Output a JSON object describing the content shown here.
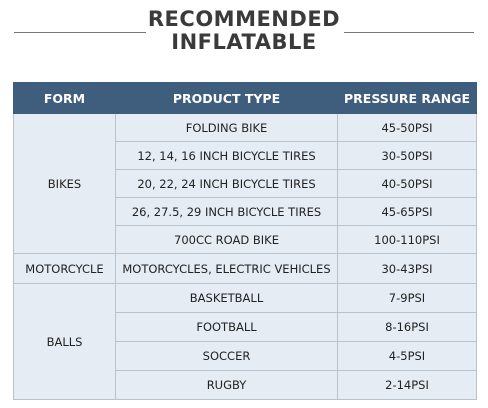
{
  "header": {
    "title": [
      "RECOMMENDED",
      "INFLATABLE"
    ]
  },
  "table": {
    "columns": [
      "FORM",
      "PRODUCT TYPE",
      "PRESSURE RANGE"
    ],
    "groups": [
      {
        "form": "BIKES",
        "rows": [
          [
            "FOLDING BIKE",
            "45-50PSI"
          ],
          [
            "12, 14, 16 INCH BICYCLE TIRES",
            "30-50PSI"
          ],
          [
            "20, 22, 24 INCH BICYCLE TIRES",
            "40-50PSI"
          ],
          [
            "26, 27.5, 29 INCH BICYCLE TIRES",
            "45-65PSI"
          ],
          [
            "700CC ROAD BIKE",
            "100-110PSI"
          ]
        ]
      },
      {
        "form": "MOTORCYCLE",
        "rows": [
          [
            "MOTORCYCLES, ELECTRIC VEHICLES",
            "30-43PSI"
          ]
        ]
      },
      {
        "form": "BALLS",
        "rows": [
          [
            "BASKETBALL",
            "7-9PSI"
          ],
          [
            "FOOTBALL",
            "8-16PSI"
          ],
          [
            "SOCCER",
            "4-5PSI"
          ],
          [
            "RUGBY",
            "2-14PSI"
          ]
        ]
      }
    ]
  }
}
